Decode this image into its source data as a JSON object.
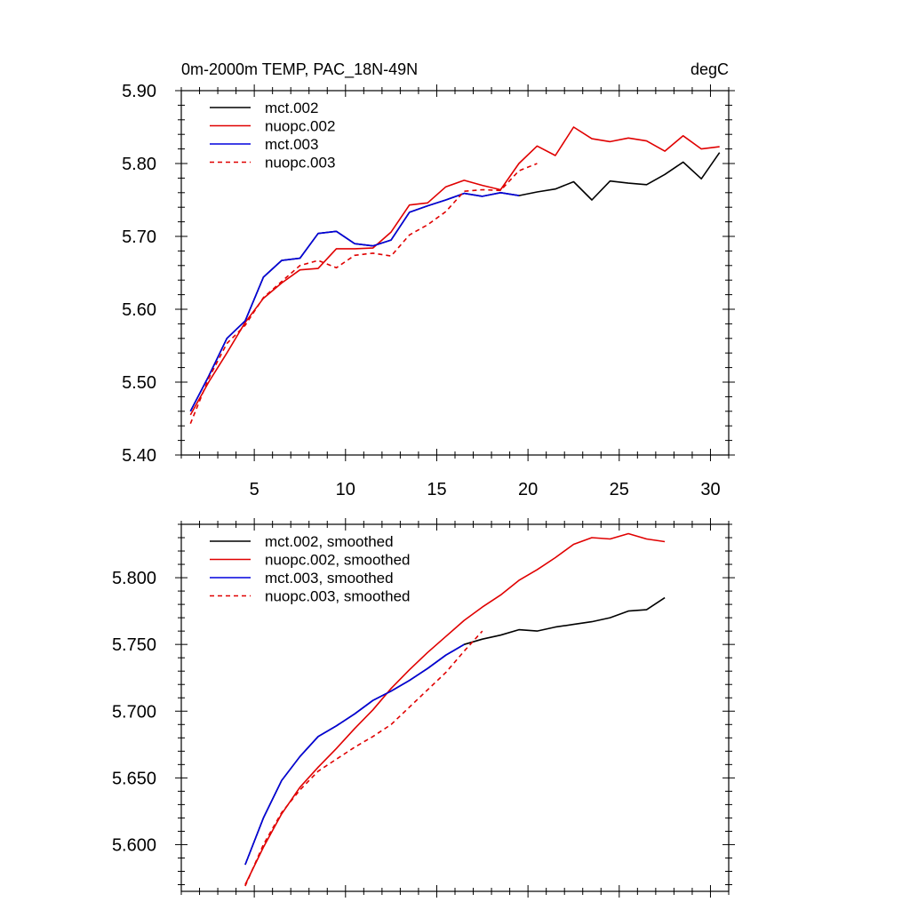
{
  "chart_data": [
    {
      "type": "line",
      "title_left": "0m-2000m TEMP, PAC_18N-49N",
      "title_right": "degC",
      "xlim": [
        1,
        31
      ],
      "ylim": [
        5.4,
        5.9
      ],
      "xticks": [
        5,
        10,
        15,
        20,
        25,
        30
      ],
      "xtick_labels": [
        "5",
        "10",
        "15",
        "20",
        "25",
        "30"
      ],
      "yticks": [
        5.4,
        5.5,
        5.6,
        5.7,
        5.8,
        5.9
      ],
      "ytick_labels": [
        "5.40",
        "5.50",
        "5.60",
        "5.70",
        "5.80",
        "5.90"
      ],
      "legend_position": "top-left",
      "series": [
        {
          "name": "mct.002",
          "color": "#000000",
          "dash": "solid",
          "x": [
            1.5,
            2.5,
            3.5,
            4.5,
            5.5,
            6.5,
            7.5,
            8.5,
            9.5,
            10.5,
            11.5,
            12.5,
            13.5,
            14.5,
            15.5,
            16.5,
            17.5,
            18.5,
            19.5,
            20.5,
            21.5,
            22.5,
            23.5,
            24.5,
            25.5,
            26.5,
            27.5,
            28.5,
            29.5,
            30.5
          ],
          "y": [
            5.46,
            5.508,
            5.56,
            5.584,
            5.644,
            5.667,
            5.67,
            5.704,
            5.707,
            5.69,
            5.687,
            5.695,
            5.733,
            5.742,
            5.75,
            5.759,
            5.755,
            5.76,
            5.756,
            5.761,
            5.765,
            5.775,
            5.75,
            5.776,
            5.773,
            5.771,
            5.785,
            5.802,
            5.779,
            5.815
          ]
        },
        {
          "name": "nuopc.002",
          "color": "#e00000",
          "dash": "solid",
          "x": [
            1.5,
            2.5,
            3.5,
            4.5,
            5.5,
            6.5,
            7.5,
            8.5,
            9.5,
            10.5,
            11.5,
            12.5,
            13.5,
            14.5,
            15.5,
            16.5,
            17.5,
            18.5,
            19.5,
            20.5,
            21.5,
            22.5,
            23.5,
            24.5,
            25.5,
            26.5,
            27.5,
            28.5,
            29.5,
            30.5
          ],
          "y": [
            5.455,
            5.5,
            5.54,
            5.582,
            5.615,
            5.636,
            5.654,
            5.656,
            5.683,
            5.683,
            5.684,
            5.706,
            5.743,
            5.746,
            5.768,
            5.777,
            5.77,
            5.764,
            5.8,
            5.824,
            5.811,
            5.85,
            5.834,
            5.83,
            5.835,
            5.831,
            5.817,
            5.838,
            5.82,
            5.823
          ]
        },
        {
          "name": "mct.003",
          "color": "#0000dd",
          "dash": "solid",
          "x": [
            1.5,
            2.5,
            3.5,
            4.5,
            5.5,
            6.5,
            7.5,
            8.5,
            9.5,
            10.5,
            11.5,
            12.5,
            13.5,
            14.5,
            15.5,
            16.5,
            17.5,
            18.5,
            19.5
          ],
          "y": [
            5.46,
            5.508,
            5.56,
            5.584,
            5.644,
            5.667,
            5.67,
            5.704,
            5.707,
            5.69,
            5.687,
            5.695,
            5.733,
            5.742,
            5.75,
            5.759,
            5.755,
            5.76,
            5.756
          ]
        },
        {
          "name": "nuopc.003",
          "color": "#e00000",
          "dash": "dashed",
          "x": [
            1.5,
            2.5,
            3.5,
            4.5,
            5.5,
            6.5,
            7.5,
            8.5,
            9.5,
            10.5,
            11.5,
            12.5,
            13.5,
            14.5,
            15.5,
            16.5,
            17.5,
            18.5,
            19.5,
            20.5
          ],
          "y": [
            5.443,
            5.505,
            5.553,
            5.578,
            5.616,
            5.638,
            5.66,
            5.667,
            5.657,
            5.674,
            5.677,
            5.673,
            5.702,
            5.716,
            5.734,
            5.762,
            5.764,
            5.763,
            5.79,
            5.8
          ]
        }
      ]
    },
    {
      "type": "line",
      "xlim": [
        1,
        31
      ],
      "ylim": [
        5.565,
        5.84
      ],
      "xticks": [
        5,
        10,
        15,
        20,
        25,
        30
      ],
      "yticks": [
        5.6,
        5.65,
        5.7,
        5.75,
        5.8
      ],
      "ytick_labels": [
        "5.600",
        "5.650",
        "5.700",
        "5.750",
        "5.800"
      ],
      "legend_position": "top-left",
      "series": [
        {
          "name": "mct.002, smoothed",
          "color": "#000000",
          "dash": "solid",
          "x": [
            4.5,
            5.5,
            6.5,
            7.5,
            8.5,
            9.5,
            10.5,
            11.5,
            12.5,
            13.5,
            14.5,
            15.5,
            16.5,
            17.5,
            18.5,
            19.5,
            20.5,
            21.5,
            22.5,
            23.5,
            24.5,
            25.5,
            26.5,
            27.5
          ],
          "y": [
            5.585,
            5.62,
            5.648,
            5.666,
            5.681,
            5.689,
            5.698,
            5.708,
            5.715,
            5.723,
            5.732,
            5.742,
            5.75,
            5.754,
            5.757,
            5.761,
            5.76,
            5.763,
            5.765,
            5.767,
            5.77,
            5.775,
            5.776,
            5.785
          ]
        },
        {
          "name": "nuopc.002, smoothed",
          "color": "#e00000",
          "dash": "solid",
          "x": [
            4.5,
            5.5,
            6.5,
            7.5,
            8.5,
            9.5,
            10.5,
            11.5,
            12.5,
            13.5,
            14.5,
            15.5,
            16.5,
            17.5,
            18.5,
            19.5,
            20.5,
            21.5,
            22.5,
            23.5,
            24.5,
            25.5,
            26.5,
            27.5
          ],
          "y": [
            5.57,
            5.598,
            5.623,
            5.643,
            5.658,
            5.672,
            5.687,
            5.701,
            5.717,
            5.731,
            5.744,
            5.756,
            5.768,
            5.778,
            5.787,
            5.798,
            5.806,
            5.815,
            5.825,
            5.83,
            5.829,
            5.833,
            5.829,
            5.827
          ]
        },
        {
          "name": "mct.003, smoothed",
          "color": "#0000dd",
          "dash": "solid",
          "x": [
            4.5,
            5.5,
            6.5,
            7.5,
            8.5,
            9.5,
            10.5,
            11.5,
            12.5,
            13.5,
            14.5,
            15.5,
            16.5
          ],
          "y": [
            5.585,
            5.62,
            5.648,
            5.666,
            5.681,
            5.689,
            5.698,
            5.708,
            5.715,
            5.723,
            5.732,
            5.742,
            5.75
          ]
        },
        {
          "name": "nuopc.003, smoothed",
          "color": "#e00000",
          "dash": "dashed",
          "x": [
            4.5,
            5.5,
            6.5,
            7.5,
            8.5,
            9.5,
            10.5,
            11.5,
            12.5,
            13.5,
            14.5,
            15.5,
            16.5,
            17.5
          ],
          "y": [
            5.569,
            5.6,
            5.624,
            5.641,
            5.655,
            5.664,
            5.673,
            5.681,
            5.69,
            5.703,
            5.716,
            5.729,
            5.745,
            5.76
          ]
        }
      ]
    }
  ]
}
